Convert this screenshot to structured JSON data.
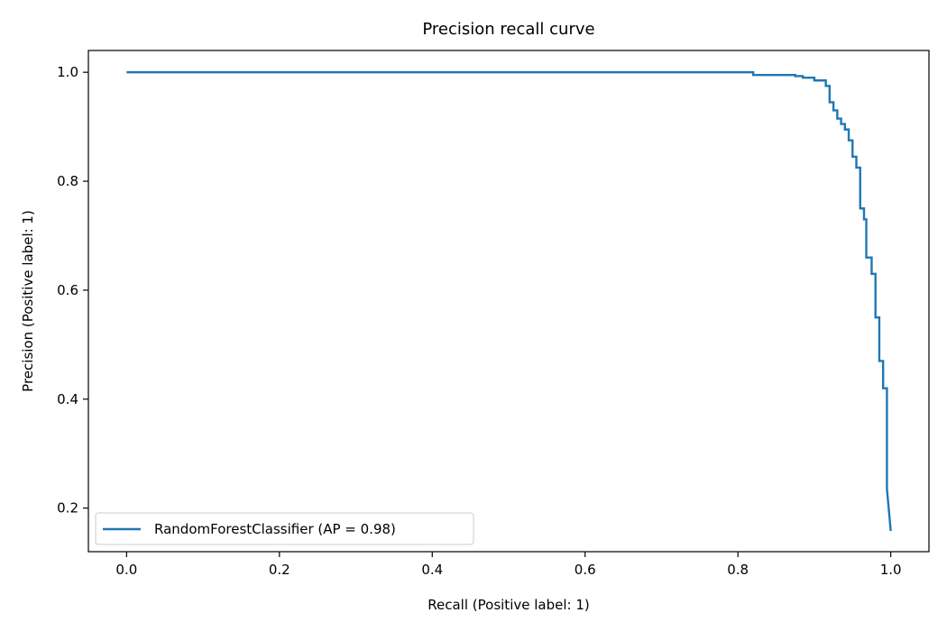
{
  "chart_data": {
    "type": "line",
    "title": "Precision recall curve",
    "xlabel": "Recall (Positive label: 1)",
    "ylabel": "Precision (Positive label: 1)",
    "xlim": [
      -0.05,
      1.05
    ],
    "ylim": [
      0.12,
      1.04
    ],
    "xticks": [
      "0.0",
      "0.2",
      "0.4",
      "0.6",
      "0.8",
      "1.0"
    ],
    "yticks": [
      "0.2",
      "0.4",
      "0.6",
      "0.8",
      "1.0"
    ],
    "grid": false,
    "legend_position": "lower-left",
    "series": [
      {
        "name": "RandomForestClassifier (AP = 0.98)",
        "color": "#1f77b4",
        "x": [
          0.0,
          0.82,
          0.82,
          0.875,
          0.875,
          0.885,
          0.885,
          0.9,
          0.9,
          0.915,
          0.915,
          0.92,
          0.92,
          0.925,
          0.925,
          0.93,
          0.93,
          0.935,
          0.935,
          0.94,
          0.94,
          0.945,
          0.945,
          0.95,
          0.95,
          0.955,
          0.955,
          0.96,
          0.96,
          0.965,
          0.965,
          0.968,
          0.968,
          0.975,
          0.975,
          0.98,
          0.98,
          0.985,
          0.985,
          0.99,
          0.99,
          0.995,
          0.995,
          1.0
        ],
        "y": [
          1.0,
          1.0,
          0.995,
          0.995,
          0.993,
          0.993,
          0.99,
          0.99,
          0.985,
          0.985,
          0.975,
          0.975,
          0.945,
          0.945,
          0.93,
          0.93,
          0.915,
          0.915,
          0.905,
          0.905,
          0.895,
          0.895,
          0.875,
          0.875,
          0.845,
          0.845,
          0.825,
          0.825,
          0.75,
          0.75,
          0.73,
          0.73,
          0.66,
          0.66,
          0.63,
          0.63,
          0.55,
          0.55,
          0.47,
          0.47,
          0.42,
          0.42,
          0.235,
          0.158
        ]
      }
    ]
  }
}
